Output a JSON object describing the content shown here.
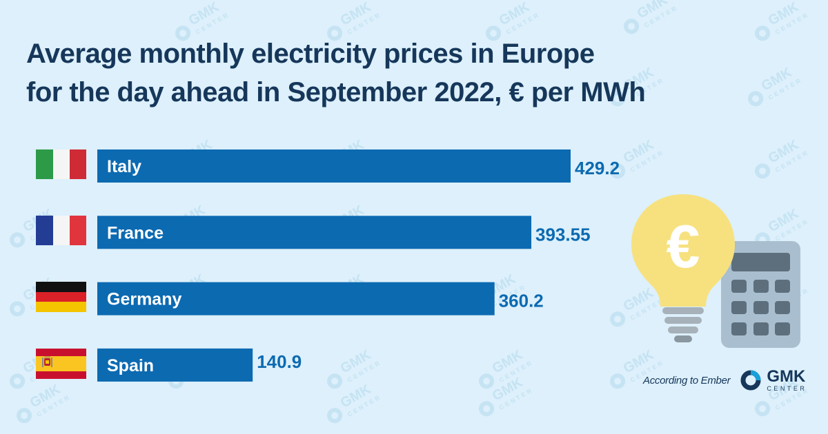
{
  "title_lines": [
    "Average monthly electricity prices in Europe",
    "for the day ahead in September 2022, € per MWh"
  ],
  "source_text": "According to Ember",
  "brand": {
    "name": "GMK",
    "sub": "CENTER"
  },
  "colors": {
    "background": "#ddf0fb",
    "bar": "#0c6ab1",
    "title": "#16375a",
    "value": "#0c6ab1"
  },
  "chart_data": {
    "type": "bar",
    "orientation": "horizontal",
    "title": "Average monthly electricity prices in Europe for the day ahead in September 2022, € per MWh",
    "categories": [
      "Italy",
      "France",
      "Germany",
      "Spain"
    ],
    "values": [
      429.2,
      393.55,
      360.2,
      140.9
    ],
    "value_labels": [
      "429.2",
      "393.55",
      "360.2",
      "140.9"
    ],
    "flags": [
      "italy-flag-icon",
      "france-flag-icon",
      "germany-flag-icon",
      "spain-flag-icon"
    ],
    "xlim": [
      0,
      429.2
    ],
    "grid": false,
    "legend": "none"
  },
  "illustration": {
    "bulb_symbol": "€",
    "icons": [
      "lightbulb-icon",
      "calculator-icon"
    ]
  }
}
